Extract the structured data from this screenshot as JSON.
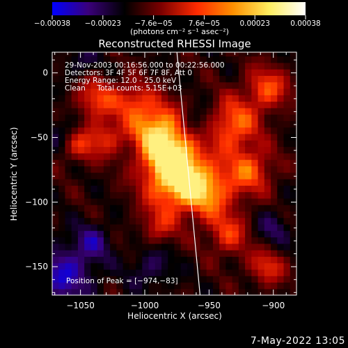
{
  "chart_data": {
    "type": "heatmap",
    "title": "Reconstructed RHESSI Image",
    "xlabel": "Heliocentric X (arcsec)",
    "ylabel": "Heliocentric Y (arcsec)",
    "xlim": [
      -1072,
      -882
    ],
    "ylim": [
      -172,
      16
    ],
    "x_ticks": [
      -1050,
      -1000,
      -950,
      -900
    ],
    "x_tick_labels": [
      "−1050",
      "−1000",
      "−950",
      "−900"
    ],
    "y_ticks": [
      0,
      -50,
      -100,
      -150
    ],
    "y_tick_labels": [
      "0",
      "−50",
      "−100",
      "−150"
    ],
    "colorbar": {
      "tick_labels": [
        "−0.00038",
        "−0.00023",
        "−7.6e−05",
        "7.6e−05",
        "0.00023",
        "0.00038"
      ],
      "units_line": "(photons cm⁻² s⁻¹ asec⁻²)",
      "range": [
        -0.00038,
        0.00038
      ],
      "colors": [
        "#0000ff",
        "#3a007a",
        "#000000",
        "#7a0000",
        "#ff2a00",
        "#ff9000",
        "#ffee60",
        "#ffffff"
      ]
    },
    "annotations": [
      "29-Nov-2003 00:16:56.000 to 00:22:56.000",
      "Detectors: 3F 4F 5F 6F 7F 8F, Att 0",
      "Energy Range: 12.0 - 25.0 keV",
      "Clean     Total counts: 5.15E+03"
    ],
    "peak_label": "Position of Peak = [−974,−83]",
    "peak": [
      -974,
      -83
    ],
    "limb_line": [
      [
        -975,
        16
      ],
      [
        -957,
        -172
      ]
    ]
  },
  "footer": {
    "timestamp": "7-May-2022 13:05"
  }
}
